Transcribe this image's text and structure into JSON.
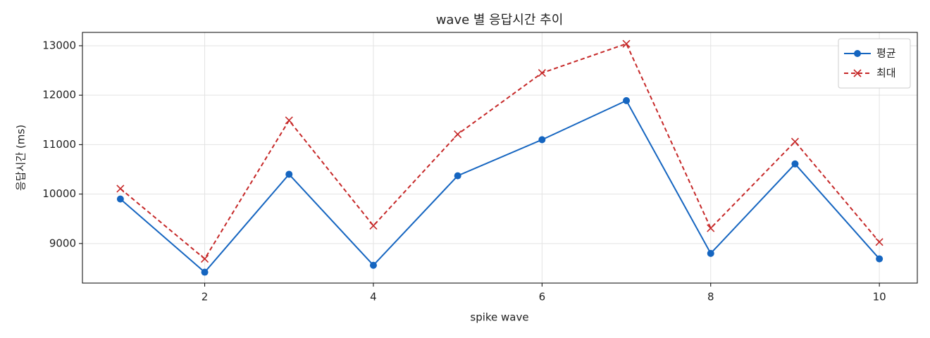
{
  "chart_data": {
    "type": "line",
    "title": "wave 별 응답시간 추이",
    "x_label": "spike wave",
    "y_label": "응답시간 (ms)",
    "x": [
      1,
      2,
      3,
      4,
      5,
      6,
      7,
      8,
      9,
      10
    ],
    "series": [
      {
        "name": "평균",
        "color": "#1565c0",
        "marker": "circle",
        "line_style": "solid",
        "values": [
          9900,
          8420,
          10400,
          8560,
          10370,
          11100,
          11890,
          8800,
          10610,
          8690
        ]
      },
      {
        "name": "최대",
        "color": "#c62828",
        "marker": "x",
        "line_style": "dashed",
        "values": [
          10110,
          8690,
          11490,
          9360,
          11210,
          12450,
          13040,
          9310,
          11060,
          9030
        ]
      }
    ],
    "xlim": [
      0.55,
      10.45
    ],
    "xticks": [
      2,
      4,
      6,
      8,
      10
    ],
    "ylim": [
      8200,
      13270
    ],
    "yticks": [
      9000,
      10000,
      11000,
      12000,
      13000
    ],
    "grid": true,
    "legend": "upper-right"
  }
}
